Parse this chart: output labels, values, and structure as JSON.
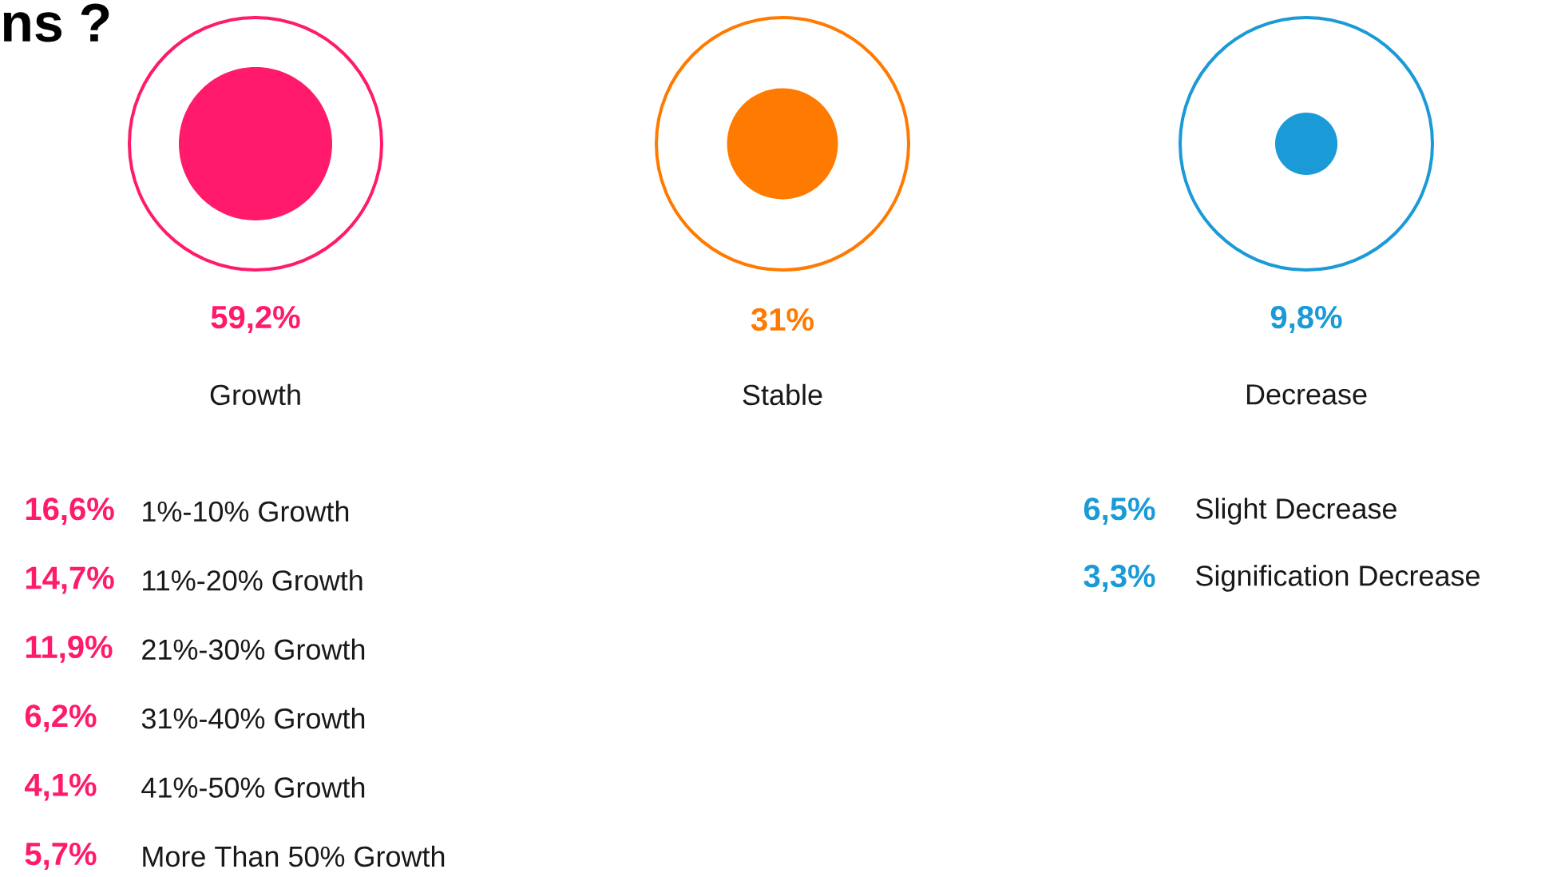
{
  "chart_data": [
    {
      "type": "other",
      "title": "ns ?",
      "categories": [
        "Growth",
        "Stable",
        "Decrease"
      ],
      "values": [
        59.2,
        31,
        9.8
      ],
      "value_labels": [
        "59,2%",
        "31%",
        "9,8%"
      ],
      "colors": [
        "#ff1a6c",
        "#ff7a00",
        "#1a9ad6"
      ]
    },
    {
      "type": "other",
      "categories": [
        "1%-10% Growth",
        "11%-20% Growth",
        "21%-30% Growth",
        "31%-40% Growth",
        "41%-50% Growth",
        "More Than 50% Growth"
      ],
      "value_labels": [
        "16,6%",
        "14,7%",
        "11,9%",
        "6,2%",
        "4,1%",
        "5,7%"
      ],
      "color": "#ff1a6c"
    },
    {
      "type": "other",
      "categories": [
        "Slight Decrease",
        "Signification Decrease"
      ],
      "value_labels": [
        "6,5%",
        "3,3%"
      ],
      "color": "#1a9ad6"
    }
  ]
}
